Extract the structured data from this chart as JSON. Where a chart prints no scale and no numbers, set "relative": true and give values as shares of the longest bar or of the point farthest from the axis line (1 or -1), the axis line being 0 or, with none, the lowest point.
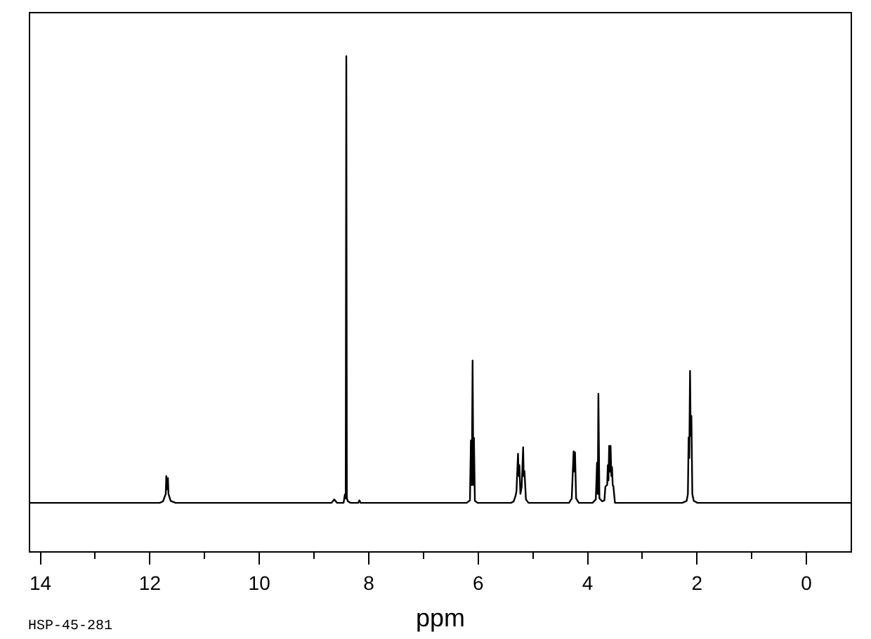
{
  "chart_data": {
    "type": "line",
    "relative": true,
    "xlabel": "ppm",
    "annotations": [
      "HSP-45-281"
    ],
    "xlim": [
      14.2,
      -0.82
    ],
    "xticks": [
      14,
      {
        "value": 13,
        "label": null
      },
      12,
      {
        "value": 11,
        "label": null
      },
      10,
      {
        "value": 9,
        "label": null
      },
      8,
      {
        "value": 7,
        "label": null
      },
      6,
      {
        "value": 5,
        "label": null
      },
      4,
      {
        "value": 3,
        "label": null
      },
      2,
      {
        "value": 1,
        "label": null
      },
      0
    ],
    "x": [
      14.2,
      11.82,
      11.76,
      11.71,
      11.7,
      11.69,
      11.67,
      11.66,
      11.62,
      11.53,
      8.68,
      8.63,
      8.58,
      8.46,
      8.436,
      8.421,
      8.41,
      8.4,
      8.38,
      8.33,
      8.19,
      8.17,
      8.15,
      6.21,
      6.15,
      6.133,
      6.117,
      6.102,
      6.087,
      6.077,
      6.06,
      6.01,
      5.4,
      5.35,
      5.32,
      5.3,
      5.272,
      5.259,
      5.247,
      5.228,
      5.205,
      5.178,
      5.168,
      5.154,
      5.127,
      5.08,
      4.34,
      4.29,
      4.256,
      4.243,
      4.23,
      4.21,
      4.16,
      3.91,
      3.85,
      3.828,
      3.814,
      3.803,
      3.784,
      3.733,
      3.693,
      3.675,
      3.642,
      3.631,
      3.619,
      3.606,
      3.593,
      3.58,
      3.566,
      3.554,
      3.541,
      3.528,
      3.5,
      2.27,
      2.19,
      2.167,
      2.154,
      2.142,
      2.128,
      2.115,
      2.103,
      2.086,
      2.06,
      1.99,
      -0.82
    ],
    "series": [
      {
        "color": "#000000",
        "values": [
          0.099,
          0.099,
          0.102,
          0.117,
          0.153,
          0.126,
          0.149,
          0.117,
          0.103,
          0.099,
          0.099,
          0.106,
          0.099,
          0.099,
          0.116,
          0.108,
          1,
          0.108,
          0.102,
          0.099,
          0.099,
          0.104,
          0.099,
          0.099,
          0.104,
          0.225,
          0.135,
          0.386,
          0.135,
          0.23,
          0.103,
          0.099,
          0.099,
          0.102,
          0.112,
          0.122,
          0.198,
          0.153,
          0.175,
          0.117,
          0.131,
          0.211,
          0.153,
          0.163,
          0.106,
          0.099,
          0.099,
          0.108,
          0.203,
          0.162,
          0.201,
          0.108,
          0.099,
          0.099,
          0.106,
          0.18,
          0.117,
          0.319,
          0.108,
          0.102,
          0.104,
          0.132,
          0.135,
          0.175,
          0.144,
          0.214,
          0.162,
          0.214,
          0.153,
          0.171,
          0.135,
          0.132,
          0.099,
          0.099,
          0.103,
          0.117,
          0.231,
          0.189,
          0.365,
          0.234,
          0.274,
          0.117,
          0.103,
          0.099,
          0.099
        ]
      }
    ]
  }
}
